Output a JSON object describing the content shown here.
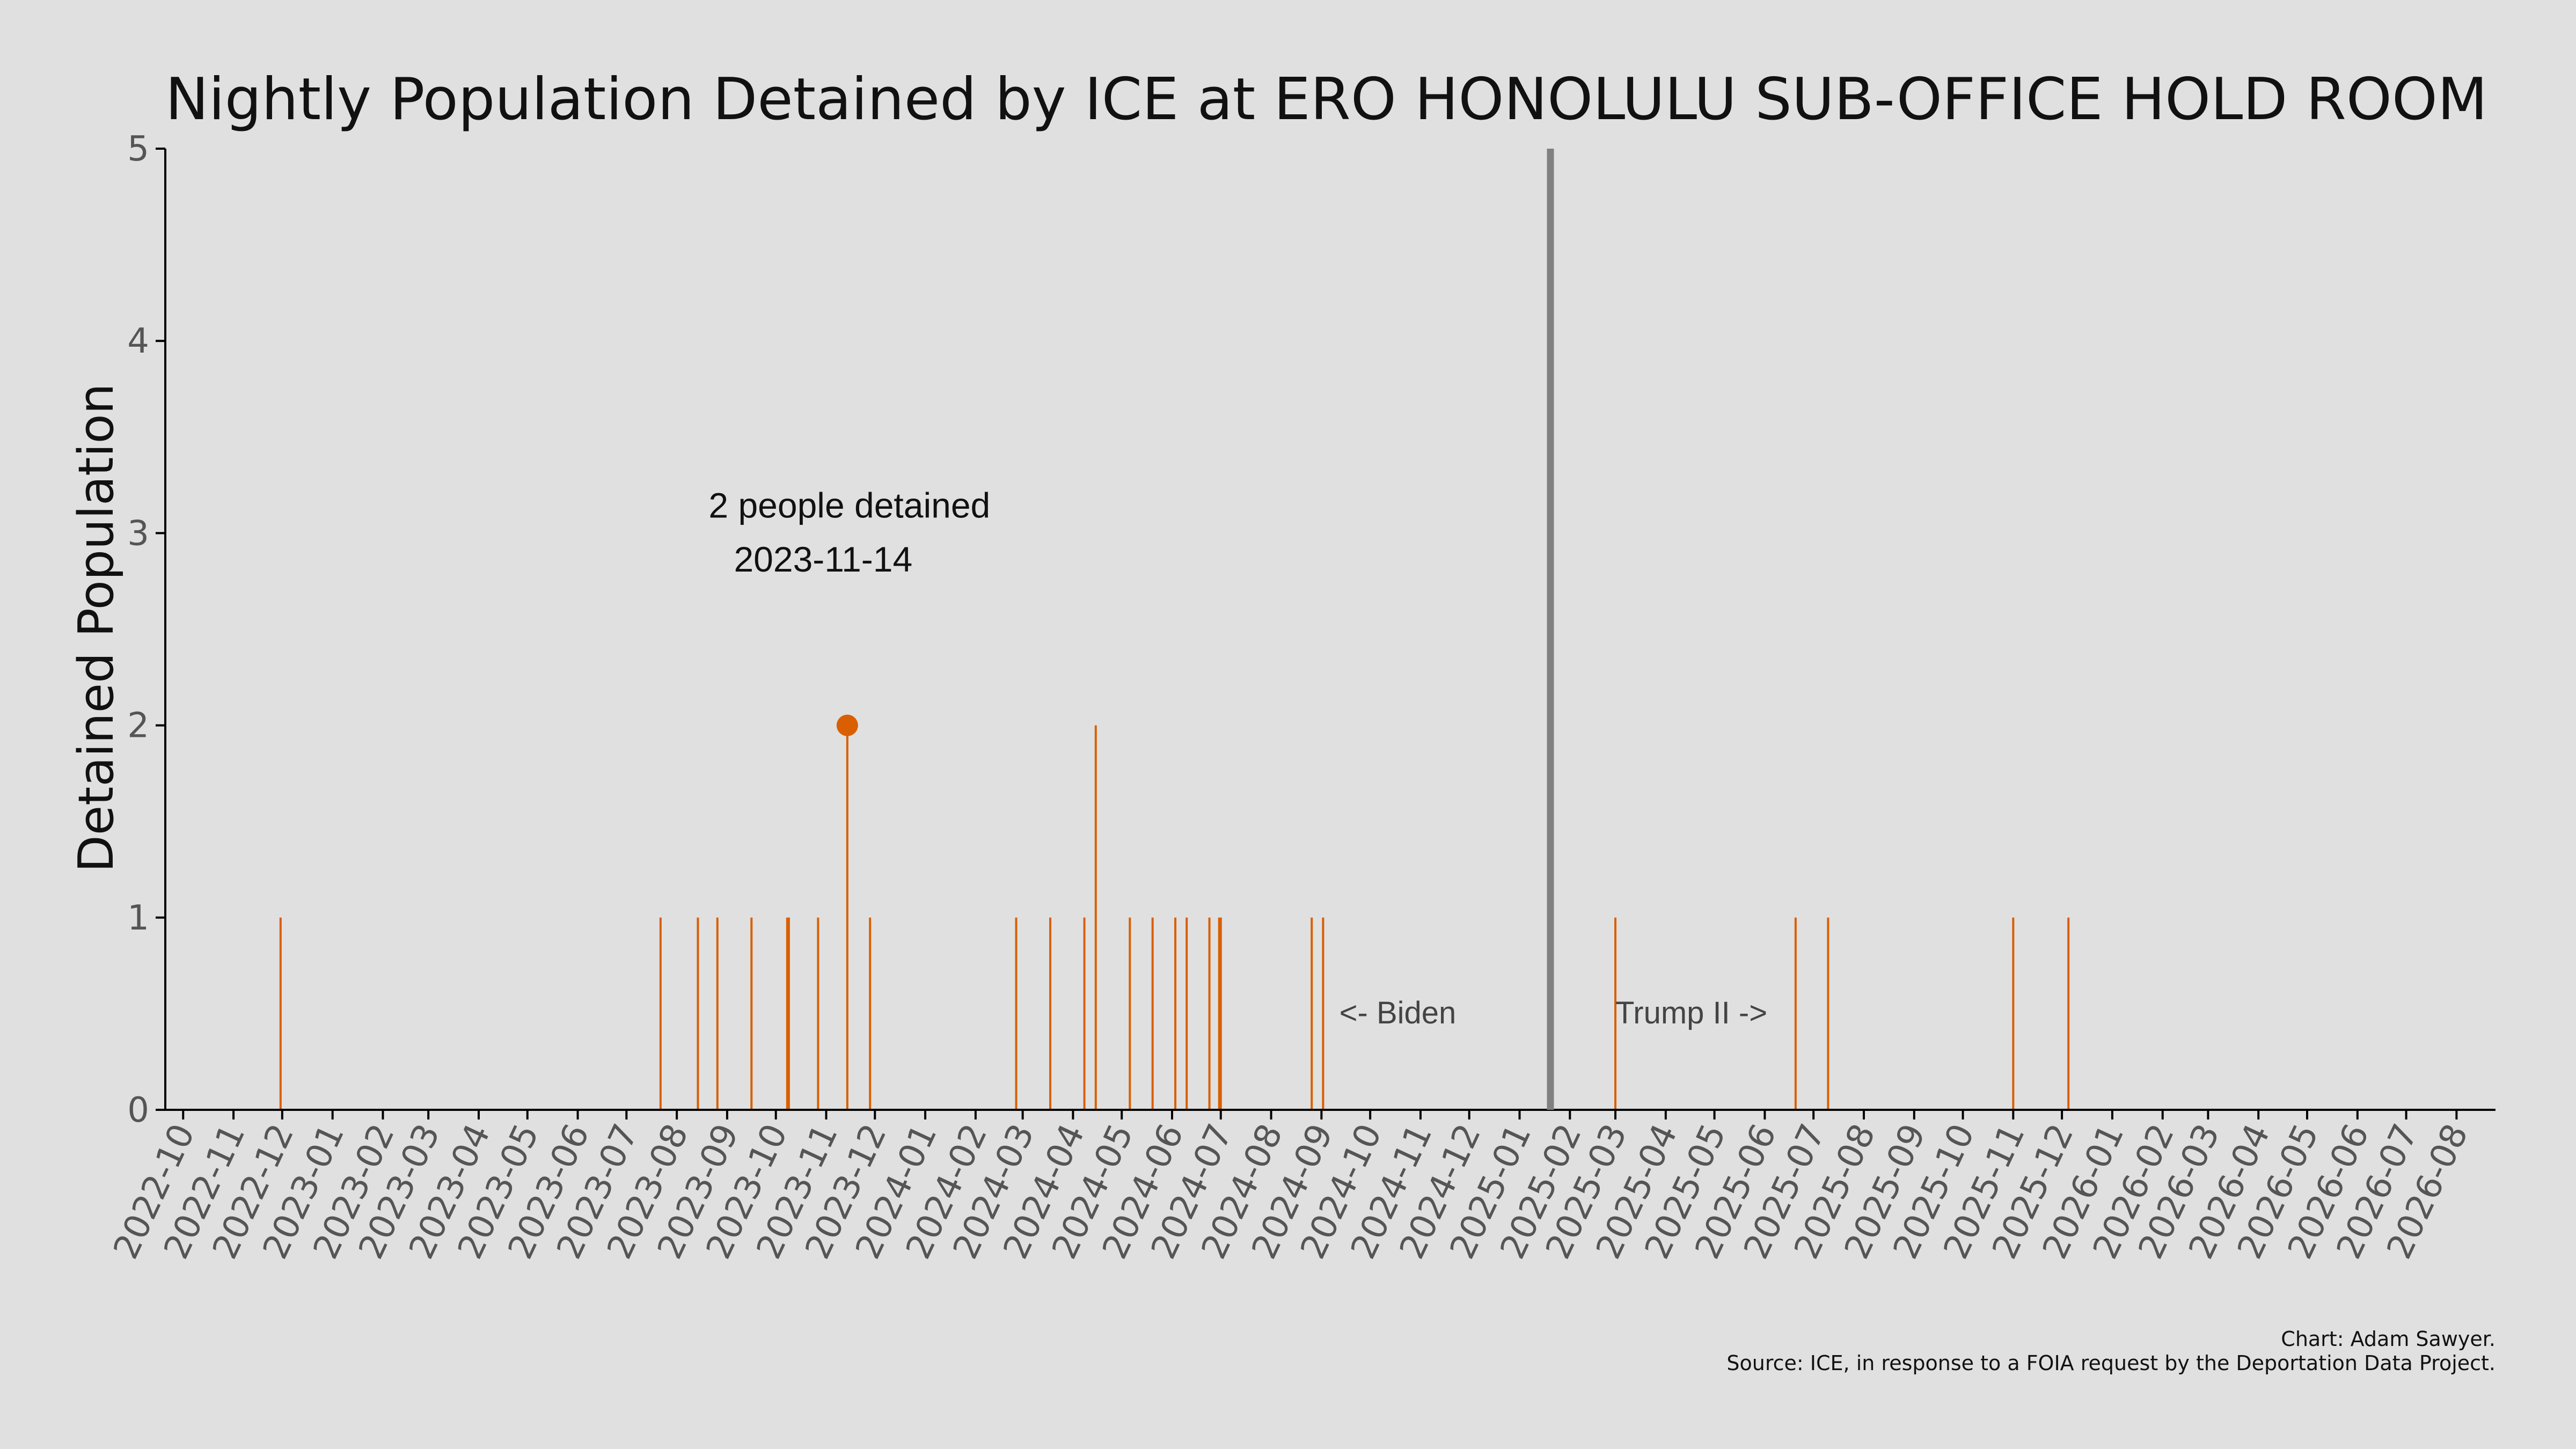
{
  "chart_data": {
    "type": "bar",
    "title": "Nightly Population Detained by ICE at ERO HONOLULU SUB-OFFICE HOLD ROOM",
    "xlabel": "",
    "ylabel": "Detained Population",
    "ylim": [
      0,
      5
    ],
    "yticks": [
      0,
      1,
      2,
      3,
      4,
      5
    ],
    "xlim": [
      "2022-09-20",
      "2026-08-25"
    ],
    "xticks": [
      "2022-10",
      "2022-11",
      "2022-12",
      "2023-01",
      "2023-02",
      "2023-03",
      "2023-04",
      "2023-05",
      "2023-06",
      "2023-07",
      "2023-08",
      "2023-09",
      "2023-10",
      "2023-11",
      "2023-12",
      "2024-01",
      "2024-02",
      "2024-03",
      "2024-04",
      "2024-05",
      "2024-06",
      "2024-07",
      "2024-08",
      "2024-09",
      "2024-10",
      "2024-11",
      "2024-12",
      "2025-01",
      "2025-02",
      "2025-03",
      "2025-04",
      "2025-05",
      "2025-06",
      "2025-07",
      "2025-08",
      "2025-09",
      "2025-10",
      "2025-11",
      "2025-12",
      "2026-01",
      "2026-02",
      "2026-03",
      "2026-04",
      "2026-05",
      "2026-06",
      "2026-07",
      "2026-08"
    ],
    "series": [
      {
        "x": [
          "2022-11-30",
          "2023-07-22",
          "2023-08-14",
          "2023-08-26",
          "2023-09-16",
          "2023-10-08",
          "2023-10-09",
          "2023-10-27",
          "2023-11-14",
          "2023-11-28",
          "2024-02-26",
          "2024-03-18",
          "2024-04-08",
          "2024-04-15",
          "2024-05-06",
          "2024-05-20",
          "2024-06-03",
          "2024-06-10",
          "2024-06-24",
          "2024-06-30",
          "2024-07-01",
          "2024-08-26",
          "2024-09-02",
          "2025-03-01",
          "2025-06-20",
          "2025-07-10",
          "2025-11-01",
          "2025-12-05"
        ],
        "values": [
          1,
          1,
          1,
          1,
          1,
          1,
          1,
          1,
          2,
          1,
          1,
          1,
          1,
          2,
          1,
          1,
          1,
          1,
          1,
          1,
          1,
          1,
          1,
          1,
          1,
          1,
          1,
          1
        ],
        "color": "#d95f02"
      }
    ],
    "highlight": {
      "date": "2023-11-14",
      "value": 2,
      "line1": "2 people detained",
      "line2": "2023-11-14"
    },
    "divider": {
      "date": "2025-01-20",
      "color": "#808080"
    },
    "labels": {
      "left": "<- Biden",
      "right": "Trump II ->"
    },
    "grid": false
  },
  "credit": {
    "line1": "Chart: Adam Sawyer.",
    "line2": "Source: ICE, in response to a FOIA request by the Deportation Data Project."
  }
}
